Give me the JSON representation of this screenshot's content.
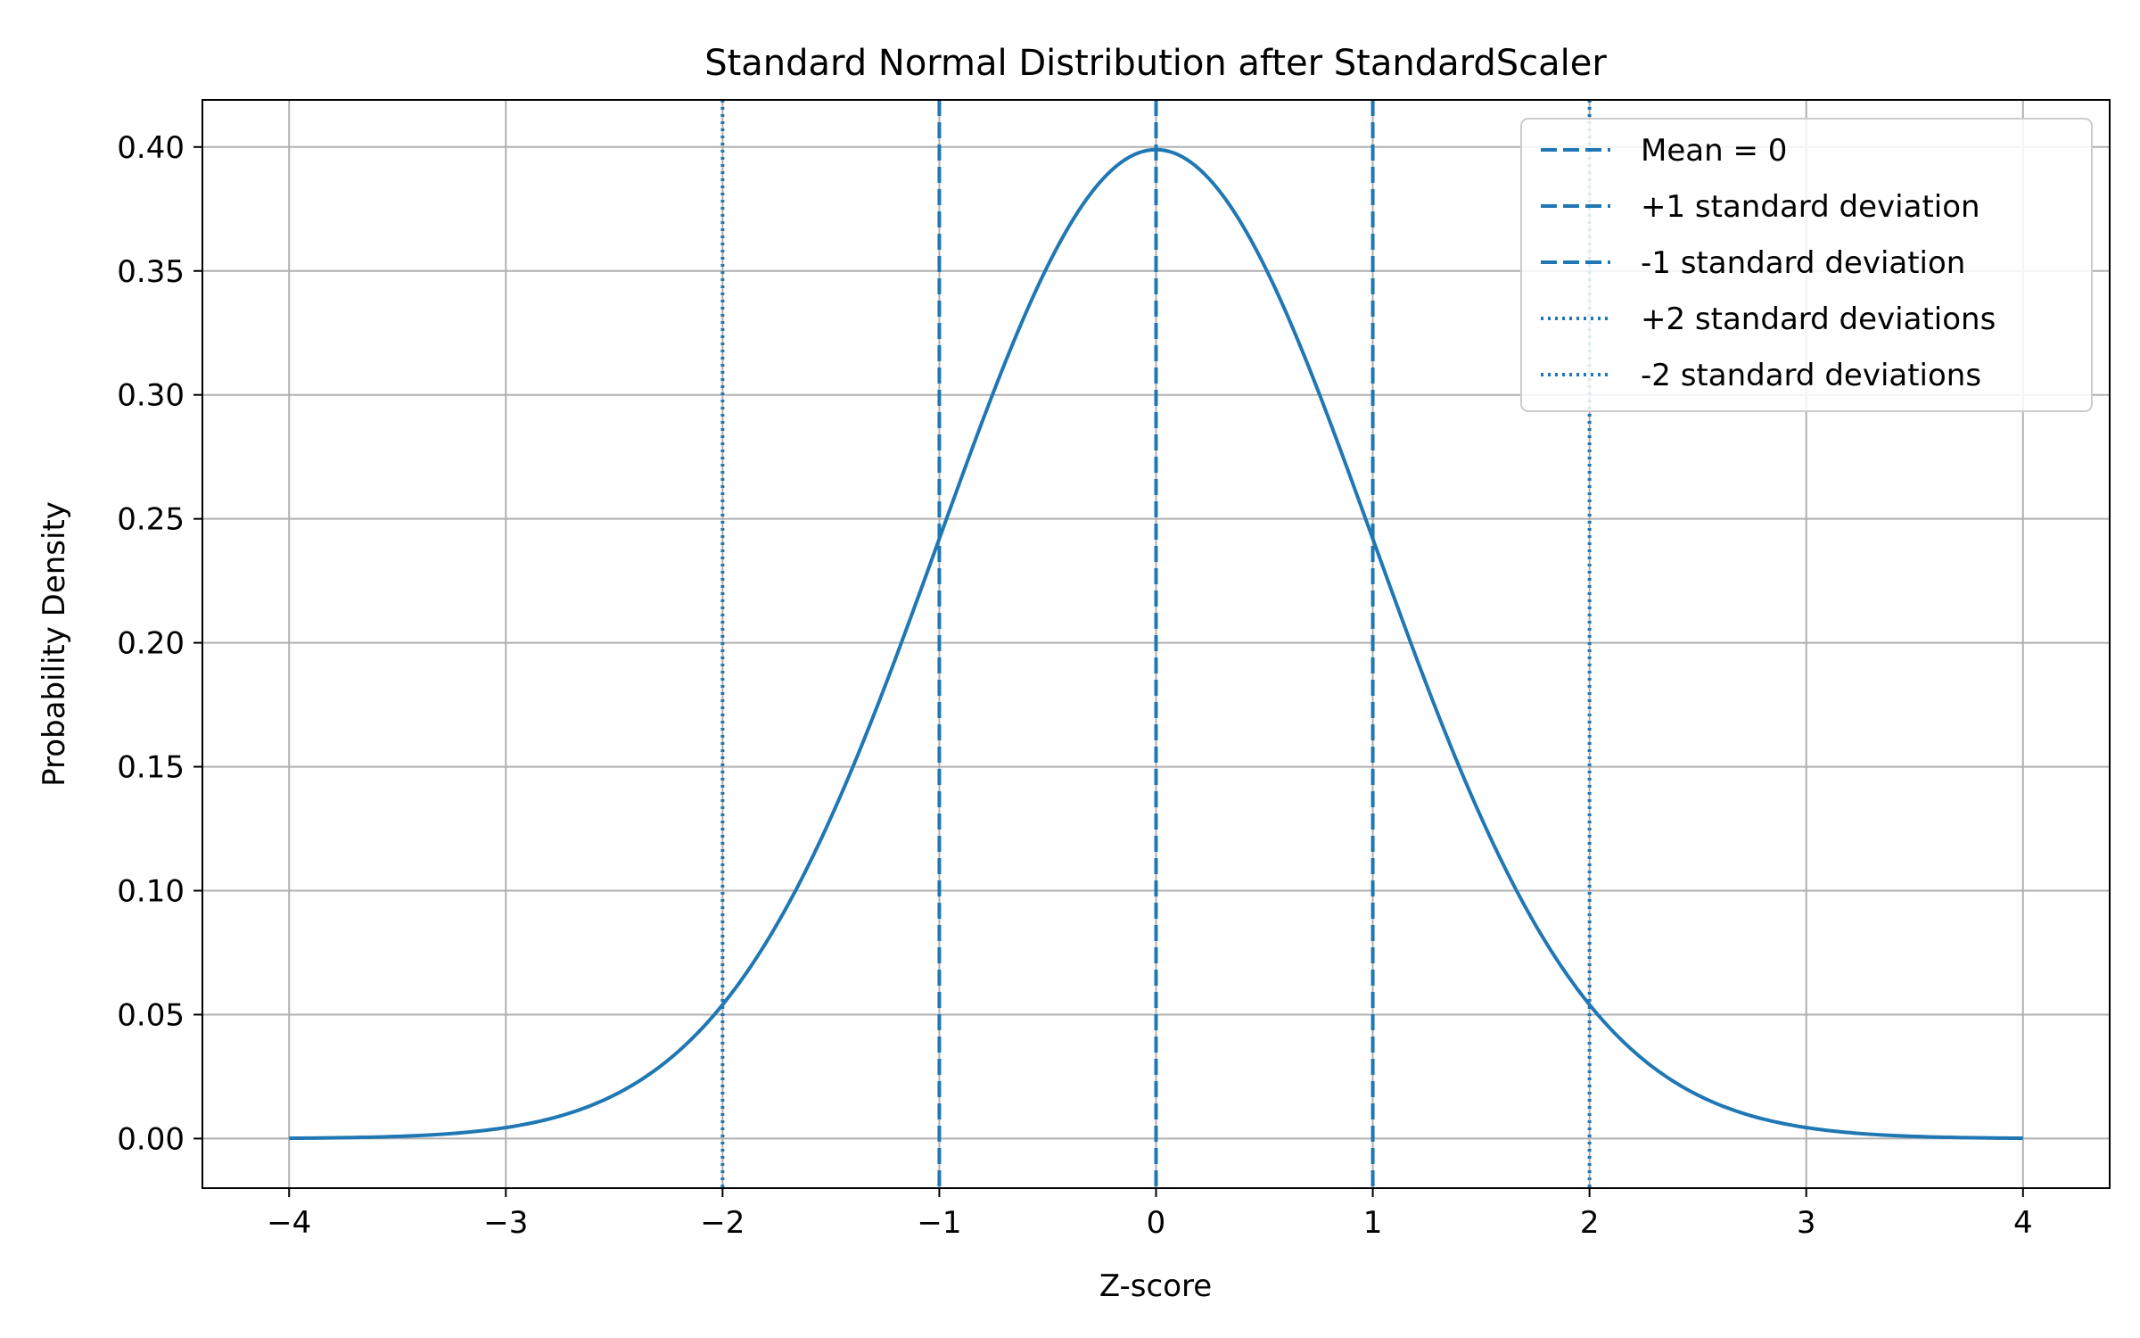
{
  "chart_data": {
    "type": "line",
    "title": "Standard Normal Distribution after StandardScaler",
    "xlabel": "Z-score",
    "ylabel": "Probability Density",
    "xlim": [
      -4.4,
      4.4
    ],
    "ylim": [
      -0.02,
      0.419
    ],
    "grid": true,
    "legend_position": "top-right",
    "x_ticks": [
      -4,
      -3,
      -2,
      -1,
      0,
      1,
      2,
      3,
      4
    ],
    "x_tick_labels": [
      "−4",
      "−3",
      "−2",
      "−1",
      "0",
      "1",
      "2",
      "3",
      "4"
    ],
    "y_ticks": [
      0.0,
      0.05,
      0.1,
      0.15,
      0.2,
      0.25,
      0.3,
      0.35,
      0.4
    ],
    "y_tick_labels": [
      "0.00",
      "0.05",
      "0.10",
      "0.15",
      "0.20",
      "0.25",
      "0.30",
      "0.35",
      "0.40"
    ],
    "curve": {
      "function": "standard normal pdf",
      "x_range": [
        -4,
        4
      ],
      "color": "#1f77b4"
    },
    "vlines": [
      {
        "name": "Mean = 0",
        "x": 0,
        "style": "dashed",
        "color": "#1f77b4"
      },
      {
        "name": "+1 standard deviation",
        "x": 1,
        "style": "dashed",
        "color": "#1f77b4"
      },
      {
        "name": "-1 standard deviation",
        "x": -1,
        "style": "dashed",
        "color": "#1f77b4"
      },
      {
        "name": "+2 standard deviations",
        "x": 2,
        "style": "dotted",
        "color": "#1f77b4"
      },
      {
        "name": "-2 standard deviations",
        "x": -2,
        "style": "dotted",
        "color": "#1f77b4"
      }
    ]
  }
}
